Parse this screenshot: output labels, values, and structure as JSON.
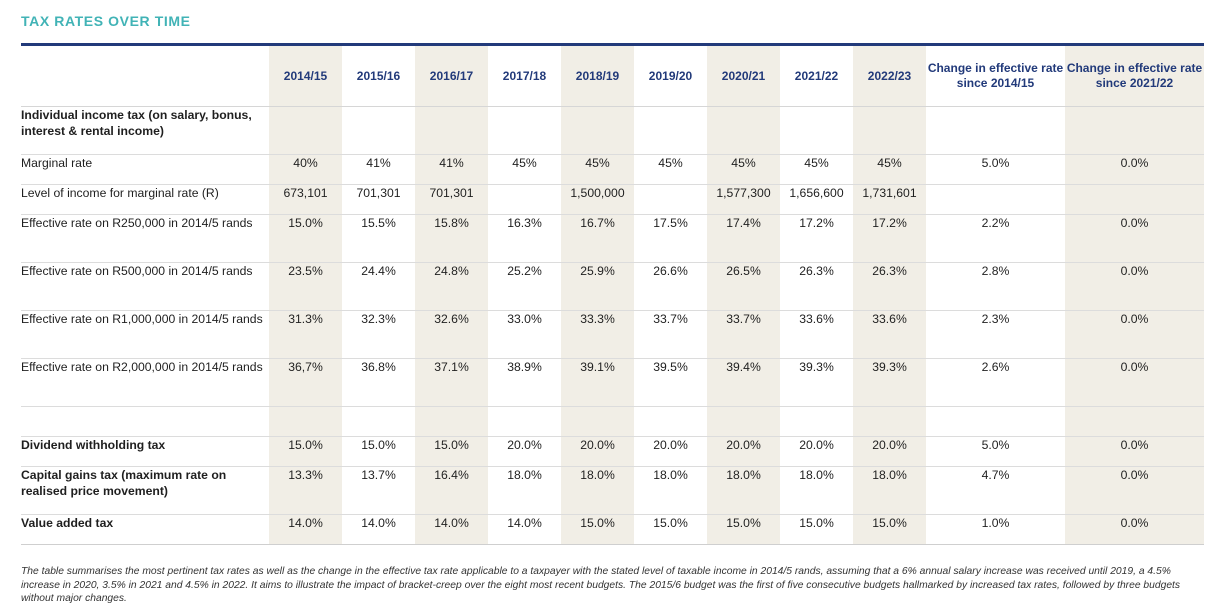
{
  "title": "TAX RATES OVER TIME",
  "headers": [
    "2014/15",
    "2015/16",
    "2016/17",
    "2017/18",
    "2018/19",
    "2019/20",
    "2020/21",
    "2021/22",
    "2022/23",
    "Change in effective rate since 2014/15",
    "Change in effective rate since 2021/22"
  ],
  "rows": [
    {
      "label": "Individual income tax (on salary, bonus, interest & rental income)",
      "bold": true,
      "values": [
        "",
        "",
        "",
        "",
        "",
        "",
        "",
        "",
        "",
        "",
        ""
      ]
    },
    {
      "label": "Marginal rate",
      "bold": false,
      "values": [
        "40%",
        "41%",
        "41%",
        "45%",
        "45%",
        "45%",
        "45%",
        "45%",
        "45%",
        "5.0%",
        "0.0%"
      ]
    },
    {
      "label": "Level of income for marginal rate (R)",
      "bold": false,
      "values": [
        "673,101",
        "701,301",
        "701,301",
        "",
        "1,500,000",
        "",
        "1,577,300",
        "1,656,600",
        "1,731,601",
        "",
        ""
      ]
    },
    {
      "label": "Effective rate on R250,000 in 2014/5 rands",
      "bold": false,
      "values": [
        "15.0%",
        "15.5%",
        "15.8%",
        "16.3%",
        "16.7%",
        "17.5%",
        "17.4%",
        "17.2%",
        "17.2%",
        "2.2%",
        "0.0%"
      ]
    },
    {
      "label": "Effective rate on R500,000 in 2014/5 rands",
      "bold": false,
      "values": [
        "23.5%",
        "24.4%",
        "24.8%",
        "25.2%",
        "25.9%",
        "26.6%",
        "26.5%",
        "26.3%",
        "26.3%",
        "2.8%",
        "0.0%"
      ]
    },
    {
      "label": "Effective rate on R1,000,000 in 2014/5 rands",
      "bold": false,
      "values": [
        "31.3%",
        "32.3%",
        "32.6%",
        "33.0%",
        "33.3%",
        "33.7%",
        "33.7%",
        "33.6%",
        "33.6%",
        "2.3%",
        "0.0%"
      ]
    },
    {
      "label": "Effective rate on R2,000,000 in 2014/5 rands",
      "bold": false,
      "values": [
        "36,7%",
        "36.8%",
        "37.1%",
        "38.9%",
        "39.1%",
        "39.5%",
        "39.4%",
        "39.3%",
        "39.3%",
        "2.6%",
        "0.0%"
      ]
    },
    {
      "label": "",
      "bold": false,
      "values": [
        "",
        "",
        "",
        "",
        "",
        "",
        "",
        "",
        "",
        "",
        ""
      ]
    },
    {
      "label": "Dividend withholding tax",
      "bold": true,
      "values": [
        "15.0%",
        "15.0%",
        "15.0%",
        "20.0%",
        "20.0%",
        "20.0%",
        "20.0%",
        "20.0%",
        "20.0%",
        "5.0%",
        "0.0%"
      ]
    },
    {
      "label": "Capital gains tax (maximum rate on realised price movement)",
      "bold": true,
      "values": [
        "13.3%",
        "13.7%",
        "16.4%",
        "18.0%",
        "18.0%",
        "18.0%",
        "18.0%",
        "18.0%",
        "18.0%",
        "4.7%",
        "0.0%"
      ]
    },
    {
      "label": "Value added tax",
      "bold": true,
      "values": [
        "14.0%",
        "14.0%",
        "14.0%",
        "14.0%",
        "15.0%",
        "15.0%",
        "15.0%",
        "15.0%",
        "15.0%",
        "1.0%",
        "0.0%"
      ]
    }
  ],
  "footnote": "The table summarises the most pertinent tax rates as well as the change in the effective tax rate applicable to a taxpayer with the stated level of taxable income in 2014/5 rands, assuming that a 6% annual salary increase was received until 2019, a 4.5% increase in 2020, 3.5% in 2021 and 4.5% in 2022. It aims to illustrate the impact of bracket-creep over the eight most recent budgets. The 2015/6 budget was the first of five consecutive budgets hallmarked by increased tax rates, followed by three budgets without major changes.",
  "colors": {
    "title": "#41b3b6",
    "header": "#223a7a",
    "shade": "#f1eee6",
    "rule": "#223a7a"
  }
}
